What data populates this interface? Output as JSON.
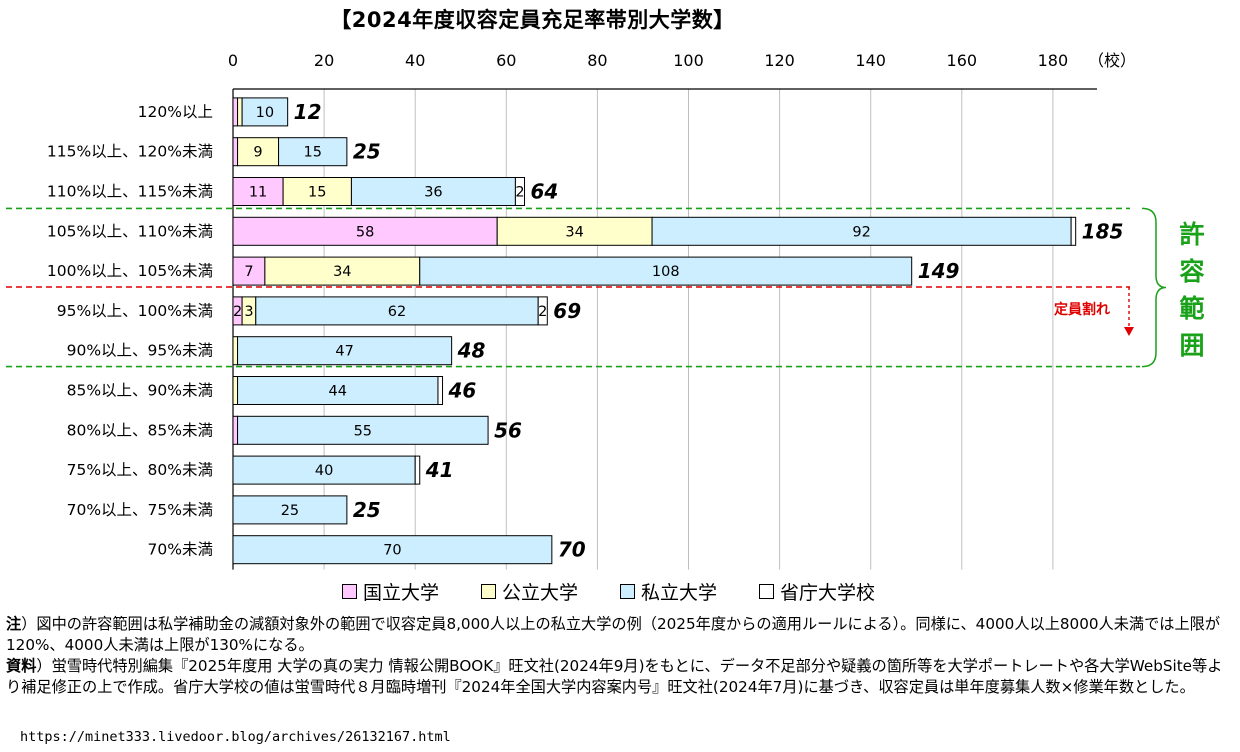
{
  "title": "【2024年度収容定員充足率帯別大学数】",
  "unit_label": "（校）",
  "allowable_label": "許容範囲",
  "quota_label": "定員割れ",
  "colors": {
    "national": "#ffc8ff",
    "public": "#ffffcc",
    "private": "#cdeeff",
    "ministry": "#ffffff",
    "grid": "#bfbfbf",
    "allow_line": "#1aa11a",
    "quota_line": "#e00000"
  },
  "legend": [
    {
      "label": "国立大学",
      "color": "#ffc8ff"
    },
    {
      "label": "公立大学",
      "color": "#ffffcc"
    },
    {
      "label": "私立大学",
      "color": "#cdeeff"
    },
    {
      "label": "省庁大学校",
      "color": "#ffffff"
    }
  ],
  "chart_data": {
    "type": "bar",
    "orientation": "horizontal",
    "stacked": true,
    "title": "【2024年度収容定員充足率帯別大学数】",
    "xlim": [
      0,
      190
    ],
    "xticks": [
      0,
      20,
      40,
      60,
      80,
      100,
      120,
      140,
      160,
      180
    ],
    "grid": true,
    "legend_position": "bottom",
    "categories": [
      "120%以上",
      "115%以上、120%未満",
      "110%以上、115%未満",
      "105%以上、110%未満",
      "100%以上、105%未満",
      "95%以上、100%未満",
      "90%以上、95%未満",
      "85%以上、90%未満",
      "80%以上、85%未満",
      "75%以上、80%未満",
      "70%以上、75%未満",
      "70%未満"
    ],
    "series": [
      {
        "name": "国立大学",
        "values": [
          1,
          1,
          11,
          58,
          7,
          2,
          0,
          0,
          1,
          0,
          0,
          0
        ]
      },
      {
        "name": "公立大学",
        "values": [
          1,
          9,
          15,
          34,
          34,
          3,
          1,
          1,
          0,
          0,
          0,
          0
        ]
      },
      {
        "name": "私立大学",
        "values": [
          10,
          15,
          36,
          92,
          108,
          62,
          47,
          44,
          55,
          40,
          25,
          70
        ]
      },
      {
        "name": "省庁大学校",
        "values": [
          0,
          0,
          2,
          1,
          0,
          2,
          0,
          1,
          0,
          1,
          0,
          0
        ]
      }
    ],
    "totals": [
      12,
      25,
      64,
      185,
      149,
      69,
      48,
      46,
      56,
      41,
      25,
      70
    ],
    "segment_labels": [
      [
        "",
        "",
        "10",
        ""
      ],
      [
        "",
        "9",
        "15",
        ""
      ],
      [
        "11",
        "15",
        "36",
        "2"
      ],
      [
        "58",
        "34",
        "92",
        ""
      ],
      [
        "7",
        "34",
        "108",
        ""
      ],
      [
        "2",
        "3",
        "62",
        "2"
      ],
      [
        "",
        "",
        "47",
        ""
      ],
      [
        "",
        "",
        "44",
        ""
      ],
      [
        "",
        "",
        "55",
        ""
      ],
      [
        "",
        "",
        "40",
        ""
      ],
      [
        "",
        "",
        "25",
        ""
      ],
      [
        "",
        "",
        "70",
        ""
      ]
    ]
  },
  "notes": [
    {
      "lead": "注",
      "text": "）図中の許容範囲は私学補助金の減額対象外の範囲で収容定員8,000人以上の私立大学の例（2025年度からの適用ルールによる）。同様に、4000人以上8000人未満では上限が120%、4000人未満は上限が130%になる。"
    },
    {
      "lead": "資料",
      "text": "）蛍雪時代特別編集『2025年度用 大学の真の実力 情報公開BOOK』旺文社(2024年9月)をもとに、データ不足部分や疑義の箇所等を大学ポートレートや各大学WebSite等より補足修正の上で作成。省庁大学校の値は蛍雪時代８月臨時増刊『2024年全国大学内容案内号』旺文社(2024年7月)に基づき、収容定員は単年度募集人数×修業年数とした。"
    }
  ],
  "url": "https://minet333.livedoor.blog/archives/26132167.html"
}
